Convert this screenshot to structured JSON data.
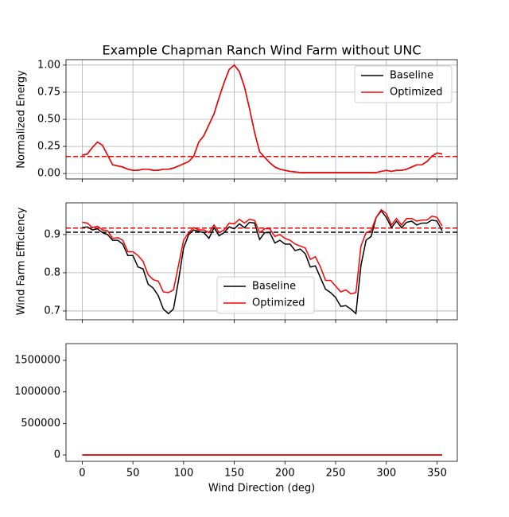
{
  "chart_data": [
    {
      "type": "line",
      "title": "Example Chapman Ranch Wind Farm without UNC",
      "ylabel": "Normalized Energy",
      "x": [
        0,
        5,
        10,
        15,
        20,
        25,
        30,
        35,
        40,
        45,
        50,
        55,
        60,
        65,
        70,
        75,
        80,
        85,
        90,
        95,
        100,
        105,
        110,
        115,
        120,
        125,
        130,
        135,
        140,
        145,
        150,
        155,
        160,
        165,
        170,
        175,
        180,
        185,
        190,
        195,
        200,
        205,
        210,
        215,
        220,
        225,
        230,
        235,
        240,
        245,
        250,
        255,
        260,
        265,
        270,
        275,
        280,
        285,
        290,
        295,
        300,
        305,
        310,
        315,
        320,
        325,
        330,
        335,
        340,
        345,
        350,
        355
      ],
      "series": [
        {
          "name": "Baseline",
          "color": "#000000",
          "mean": 0.157,
          "values": [
            0.17,
            0.18,
            0.24,
            0.29,
            0.26,
            0.17,
            0.08,
            0.07,
            0.06,
            0.04,
            0.03,
            0.03,
            0.04,
            0.04,
            0.03,
            0.03,
            0.04,
            0.04,
            0.05,
            0.07,
            0.09,
            0.11,
            0.16,
            0.29,
            0.35,
            0.45,
            0.55,
            0.7,
            0.84,
            0.96,
            1.0,
            0.94,
            0.8,
            0.6,
            0.38,
            0.2,
            0.15,
            0.1,
            0.06,
            0.04,
            0.03,
            0.02,
            0.015,
            0.01,
            0.01,
            0.01,
            0.01,
            0.01,
            0.01,
            0.01,
            0.01,
            0.01,
            0.01,
            0.01,
            0.01,
            0.01,
            0.01,
            0.01,
            0.01,
            0.02,
            0.03,
            0.02,
            0.03,
            0.03,
            0.04,
            0.06,
            0.08,
            0.08,
            0.11,
            0.16,
            0.19,
            0.18
          ]
        },
        {
          "name": "Optimized",
          "color": "#ff0000",
          "mean": 0.157,
          "values": [
            0.17,
            0.18,
            0.24,
            0.29,
            0.26,
            0.17,
            0.08,
            0.07,
            0.06,
            0.04,
            0.03,
            0.03,
            0.04,
            0.04,
            0.03,
            0.03,
            0.04,
            0.04,
            0.05,
            0.07,
            0.09,
            0.11,
            0.16,
            0.29,
            0.35,
            0.45,
            0.55,
            0.7,
            0.84,
            0.96,
            1.0,
            0.94,
            0.8,
            0.6,
            0.38,
            0.2,
            0.15,
            0.1,
            0.06,
            0.04,
            0.03,
            0.02,
            0.015,
            0.01,
            0.01,
            0.01,
            0.01,
            0.01,
            0.01,
            0.01,
            0.01,
            0.01,
            0.01,
            0.01,
            0.01,
            0.01,
            0.01,
            0.01,
            0.01,
            0.02,
            0.03,
            0.02,
            0.03,
            0.03,
            0.04,
            0.06,
            0.08,
            0.08,
            0.11,
            0.16,
            0.19,
            0.18
          ]
        }
      ],
      "xlim": [
        -16,
        370
      ],
      "xticks": [
        0,
        50,
        100,
        150,
        200,
        250,
        300,
        350
      ],
      "show_xticklabels": false,
      "ylim": [
        -0.05,
        1.05
      ],
      "yticks": [
        {
          "value": 0,
          "label": "0.00"
        },
        {
          "value": 0.25,
          "label": "0.25"
        },
        {
          "value": 0.5,
          "label": "0.50"
        },
        {
          "value": 0.75,
          "label": "0.75"
        },
        {
          "value": 1,
          "label": "1.00"
        }
      ],
      "grid": true,
      "legend": "upper right"
    },
    {
      "type": "line",
      "ylabel": "Wind Farm Efficiency",
      "x": [
        0,
        5,
        10,
        15,
        20,
        25,
        30,
        35,
        40,
        45,
        50,
        55,
        60,
        65,
        70,
        75,
        80,
        85,
        90,
        95,
        100,
        105,
        110,
        115,
        120,
        125,
        130,
        135,
        140,
        145,
        150,
        155,
        160,
        165,
        170,
        175,
        180,
        185,
        190,
        195,
        200,
        205,
        210,
        215,
        220,
        225,
        230,
        235,
        240,
        245,
        250,
        255,
        260,
        265,
        270,
        275,
        280,
        285,
        290,
        295,
        300,
        305,
        310,
        315,
        320,
        325,
        330,
        335,
        340,
        345,
        350,
        355
      ],
      "series": [
        {
          "name": "Baseline",
          "color": "#000000",
          "mean": 0.906,
          "values": [
            0.918,
            0.92,
            0.912,
            0.915,
            0.905,
            0.9,
            0.885,
            0.885,
            0.875,
            0.845,
            0.845,
            0.815,
            0.81,
            0.77,
            0.76,
            0.74,
            0.705,
            0.693,
            0.705,
            0.78,
            0.865,
            0.9,
            0.912,
            0.908,
            0.905,
            0.89,
            0.918,
            0.897,
            0.905,
            0.92,
            0.915,
            0.928,
            0.918,
            0.932,
            0.93,
            0.887,
            0.905,
            0.905,
            0.878,
            0.885,
            0.875,
            0.875,
            0.858,
            0.862,
            0.85,
            0.815,
            0.818,
            0.787,
            0.757,
            0.748,
            0.735,
            0.712,
            0.714,
            0.705,
            0.693,
            0.82,
            0.885,
            0.895,
            0.945,
            0.962,
            0.945,
            0.918,
            0.935,
            0.918,
            0.932,
            0.935,
            0.925,
            0.93,
            0.93,
            0.938,
            0.935,
            0.91
          ]
        },
        {
          "name": "Optimized",
          "color": "#ff0000",
          "mean": 0.917,
          "values": [
            0.932,
            0.93,
            0.918,
            0.922,
            0.912,
            0.91,
            0.89,
            0.892,
            0.885,
            0.855,
            0.855,
            0.845,
            0.83,
            0.795,
            0.782,
            0.778,
            0.75,
            0.748,
            0.755,
            0.82,
            0.885,
            0.905,
            0.918,
            0.912,
            0.912,
            0.905,
            0.925,
            0.905,
            0.912,
            0.93,
            0.928,
            0.94,
            0.93,
            0.94,
            0.937,
            0.905,
            0.915,
            0.915,
            0.895,
            0.9,
            0.89,
            0.885,
            0.875,
            0.87,
            0.865,
            0.835,
            0.842,
            0.815,
            0.78,
            0.78,
            0.765,
            0.75,
            0.755,
            0.745,
            0.748,
            0.87,
            0.905,
            0.91,
            0.945,
            0.965,
            0.955,
            0.925,
            0.942,
            0.925,
            0.942,
            0.942,
            0.935,
            0.938,
            0.938,
            0.948,
            0.945,
            0.922
          ]
        }
      ],
      "xlim": [
        -16,
        370
      ],
      "xticks": [
        0,
        50,
        100,
        150,
        200,
        250,
        300,
        350
      ],
      "show_xticklabels": false,
      "ylim": [
        0.677,
        0.983
      ],
      "yticks": [
        0.7,
        0.8,
        0.9
      ],
      "grid": true,
      "legend": "lower center"
    },
    {
      "type": "line",
      "xlabel": "Wind Direction (deg)",
      "x": [
        0,
        5,
        10,
        15,
        20,
        25,
        30,
        35,
        40,
        45,
        50,
        55,
        60,
        65,
        70,
        75,
        80,
        85,
        90,
        95,
        100,
        105,
        110,
        115,
        120,
        125,
        130,
        135,
        140,
        145,
        150,
        155,
        160,
        165,
        170,
        175,
        180,
        185,
        190,
        195,
        200,
        205,
        210,
        215,
        220,
        225,
        230,
        235,
        240,
        245,
        250,
        255,
        260,
        265,
        270,
        275,
        280,
        285,
        290,
        295,
        300,
        305,
        310,
        315,
        320,
        325,
        330,
        335,
        340,
        345,
        350,
        355
      ],
      "series": [
        {
          "color": "#000000",
          "values": [
            0,
            0,
            0,
            0,
            0,
            0,
            0,
            0,
            0,
            0,
            0,
            0,
            0,
            0,
            0,
            0,
            0,
            0,
            0,
            0,
            0,
            0,
            0,
            0,
            0,
            0,
            0,
            0,
            0,
            0,
            0,
            0,
            0,
            0,
            0,
            0,
            0,
            0,
            0,
            0,
            0,
            0,
            0,
            0,
            0,
            0,
            0,
            0,
            0,
            0,
            0,
            0,
            0,
            0,
            0,
            0,
            0,
            0,
            0,
            0,
            0,
            0,
            0,
            0,
            0,
            0,
            0,
            0,
            0,
            0,
            0,
            0
          ]
        },
        {
          "color": "#ff0000",
          "values": [
            0,
            0,
            0,
            0,
            0,
            0,
            0,
            0,
            0,
            0,
            0,
            0,
            0,
            0,
            0,
            0,
            0,
            0,
            0,
            0,
            0,
            0,
            0,
            0,
            0,
            0,
            0,
            0,
            0,
            0,
            0,
            0,
            0,
            0,
            0,
            0,
            0,
            0,
            0,
            0,
            0,
            0,
            0,
            0,
            0,
            0,
            0,
            0,
            0,
            0,
            0,
            0,
            0,
            0,
            0,
            0,
            0,
            0,
            0,
            0,
            0,
            0,
            0,
            0,
            0,
            0,
            0,
            0,
            0,
            0,
            0,
            0
          ]
        }
      ],
      "xlim": [
        -16,
        370
      ],
      "xticks": [
        0,
        50,
        100,
        150,
        200,
        250,
        300,
        350
      ],
      "show_xticklabels": true,
      "ylim": [
        -100000,
        1765000
      ],
      "yticks": [
        0,
        500000,
        1000000,
        1500000
      ],
      "grid": false
    }
  ]
}
